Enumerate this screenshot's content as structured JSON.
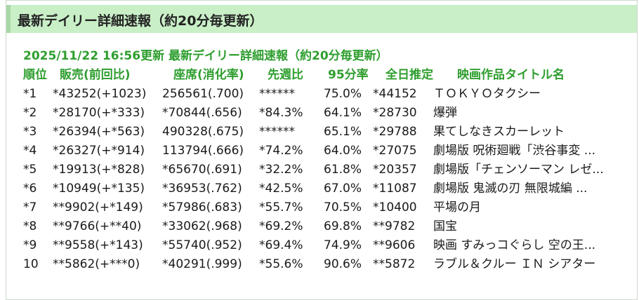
{
  "header": {
    "title": "最新デイリー詳細速報（約20分毎更新）"
  },
  "report": {
    "subtitle": "2025/11/22 16:56更新 最新デイリー詳細速報（約20分毎更新）",
    "columns": {
      "rank": "順位",
      "sales": "販売(前回比)",
      "seats": "座席(消化率)",
      "prev_ratio": "先週比",
      "pct95": "95分率",
      "day_estimate": "全日推定",
      "title": "映画作品タイトル名"
    },
    "rows": [
      {
        "rank": "*1",
        "sales": "*43252(+1023)",
        "seats": "256561(.700)",
        "prev_ratio": "******",
        "pct95": "75.0%",
        "day_estimate": "*44152",
        "title": "ＴＯＫＹＯタクシー"
      },
      {
        "rank": "*2",
        "sales": "*28170(+*333)",
        "seats": "*70844(.656)",
        "prev_ratio": "*84.3%",
        "pct95": "64.1%",
        "day_estimate": "*28730",
        "title": "爆弾"
      },
      {
        "rank": "*3",
        "sales": "*26394(+*563)",
        "seats": "490328(.675)",
        "prev_ratio": "******",
        "pct95": "65.1%",
        "day_estimate": "*29788",
        "title": "果てしなきスカーレット"
      },
      {
        "rank": "*4",
        "sales": "*26327(+*914)",
        "seats": "113794(.666)",
        "prev_ratio": "*74.2%",
        "pct95": "64.0%",
        "day_estimate": "*27075",
        "title": "劇場版 呪術廻戦「渋谷事変 ..."
      },
      {
        "rank": "*5",
        "sales": "*19913(+*828)",
        "seats": "*65670(.691)",
        "prev_ratio": "*32.2%",
        "pct95": "61.8%",
        "day_estimate": "*20357",
        "title": "劇場版「チェンソーマン レゼ..."
      },
      {
        "rank": "*6",
        "sales": "*10949(+*135)",
        "seats": "*36953(.762)",
        "prev_ratio": "*42.5%",
        "pct95": "67.0%",
        "day_estimate": "*11087",
        "title": "劇場版 鬼滅の刃 無限城編 ..."
      },
      {
        "rank": "*7",
        "sales": "**9902(+*149)",
        "seats": "*57986(.683)",
        "prev_ratio": "*55.7%",
        "pct95": "70.5%",
        "day_estimate": "*10400",
        "title": "平場の月"
      },
      {
        "rank": "*8",
        "sales": "**9766(+**40)",
        "seats": "*33062(.968)",
        "prev_ratio": "*69.2%",
        "pct95": "69.8%",
        "day_estimate": "**9782",
        "title": "国宝"
      },
      {
        "rank": "*9",
        "sales": "**9558(+*143)",
        "seats": "*55740(.952)",
        "prev_ratio": "*69.4%",
        "pct95": "74.9%",
        "day_estimate": "**9606",
        "title": "映画 すみっコぐらし 空の王..."
      },
      {
        "rank": "10",
        "sales": "**5862(+***0)",
        "seats": "*40291(.999)",
        "prev_ratio": "*55.6%",
        "pct95": "90.6%",
        "day_estimate": "**5872",
        "title": "ラブル＆クルー ＩＮ シアター"
      }
    ]
  },
  "colors": {
    "header_bg": "#c9efc7",
    "accent_green": "#2e9e2e"
  }
}
